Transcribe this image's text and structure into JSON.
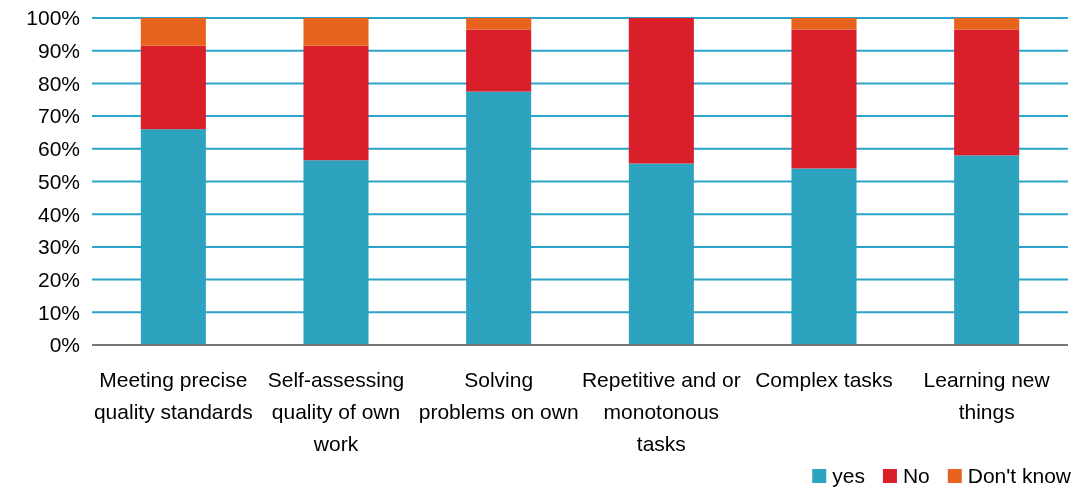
{
  "chart_data": {
    "type": "bar",
    "stacked": true,
    "categories": [
      "Meeting precise quality standards",
      "Self-assessing quality of own work",
      "Solving problems on own",
      "Repetitive and or monotonous tasks",
      "Complex tasks",
      "Learning new things"
    ],
    "series": [
      {
        "name": "yes",
        "color": "#2ea3c0",
        "values": [
          66,
          56.5,
          77.5,
          55.5,
          54,
          58
        ]
      },
      {
        "name": "No",
        "color": "#d91f2a",
        "values": [
          25.5,
          35,
          19,
          44.5,
          42.5,
          38.5
        ]
      },
      {
        "name": "Don't know",
        "color": "#e8641e",
        "values": [
          8.5,
          8.5,
          3.5,
          0,
          3.5,
          3.5
        ]
      }
    ],
    "ylim": [
      0,
      100
    ],
    "yticks": [
      {
        "value": 0,
        "label": "0%"
      },
      {
        "value": 10,
        "label": "10%"
      },
      {
        "value": 20,
        "label": "20%"
      },
      {
        "value": 30,
        "label": "30%"
      },
      {
        "value": 40,
        "label": "40%"
      },
      {
        "value": 50,
        "label": "50%"
      },
      {
        "value": 60,
        "label": "60%"
      },
      {
        "value": 70,
        "label": "70%"
      },
      {
        "value": 80,
        "label": "80%"
      },
      {
        "value": 90,
        "label": "90%"
      },
      {
        "value": 100,
        "label": "100%"
      }
    ],
    "grid": "y",
    "legend": "bottom right"
  }
}
